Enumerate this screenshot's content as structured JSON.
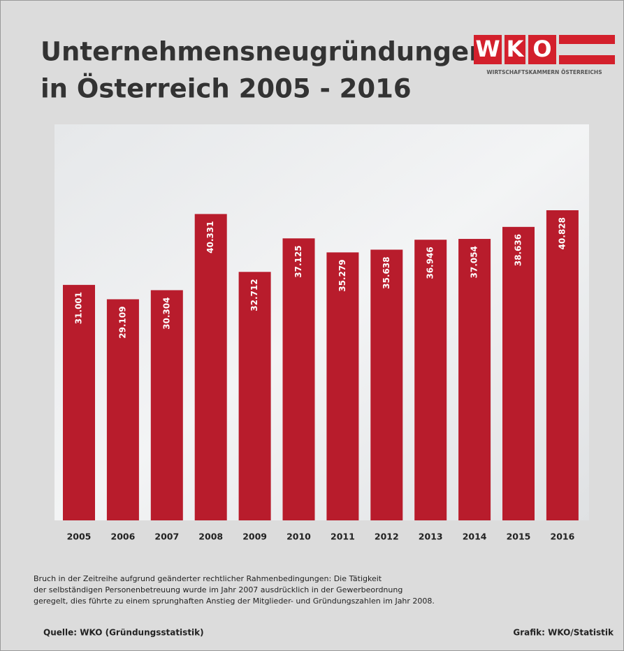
{
  "chart_data": {
    "type": "bar",
    "title": [
      "Unternehmensneugründungen",
      "in Österreich 2005 - 2016"
    ],
    "categories": [
      "2005",
      "2006",
      "2007",
      "2008",
      "2009",
      "2010",
      "2011",
      "2012",
      "2013",
      "2014",
      "2015",
      "2016"
    ],
    "values": [
      31001,
      29109,
      30304,
      40331,
      32712,
      37125,
      35279,
      35638,
      36946,
      37054,
      38636,
      40828
    ],
    "value_labels": [
      "31.001",
      "29.109",
      "30.304",
      "40.331",
      "32.712",
      "37.125",
      "35.279",
      "35.638",
      "36.946",
      "37.054",
      "38.636",
      "40.828"
    ],
    "color": "#b81c2c"
  },
  "logo": {
    "letters": [
      "W",
      "K",
      "O"
    ],
    "subtitle": "WIRTSCHAFTSKAMMERN ÖSTERREICHS"
  },
  "note": [
    "Bruch in der Zeitreihe aufgrund geänderter rechtlicher Rahmenbedingungen: Die Tätigkeit",
    "der selbständigen  Personenbetreuung wurde im Jahr 2007 ausdrücklich in der Gewerbeordnung",
    "geregelt, dies führte zu einem sprunghaften Anstieg der Mitglieder- und Gründungszahlen im Jahr 2008."
  ],
  "source": "Quelle: WKO (Gründungsstatistik)",
  "credit": "Grafik: WKO/Statistik"
}
